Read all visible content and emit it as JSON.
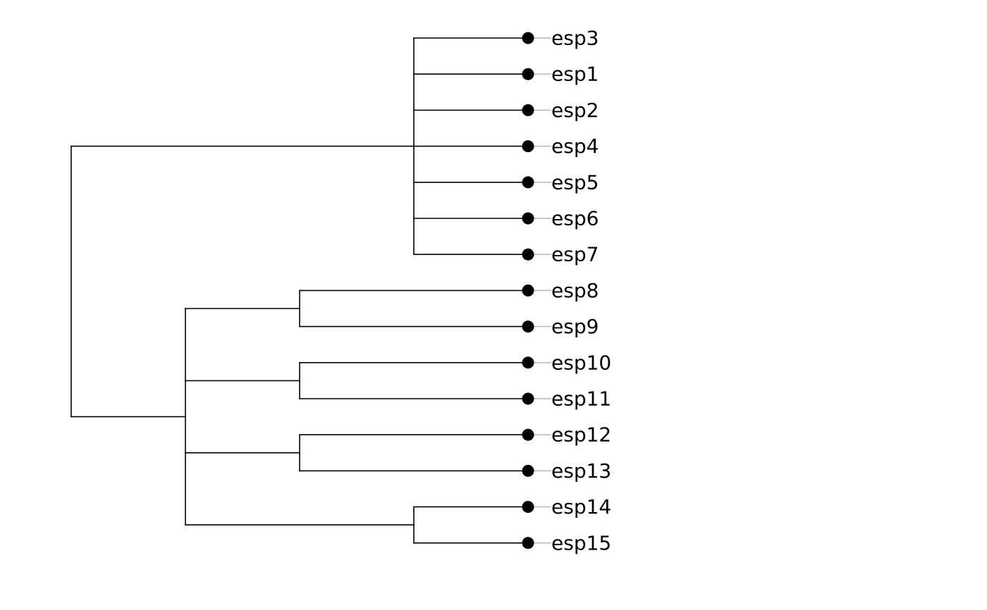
{
  "tree": {
    "id": "root",
    "children": [
      {
        "id": "A",
        "children": [
          {
            "label": "esp3"
          },
          {
            "label": "esp1"
          },
          {
            "label": "esp2"
          },
          {
            "label": "esp4"
          },
          {
            "label": "esp5"
          },
          {
            "label": "esp6"
          },
          {
            "label": "esp7"
          }
        ]
      },
      {
        "id": "B",
        "children": [
          {
            "id": "B1",
            "children": [
              {
                "label": "esp8"
              },
              {
                "label": "esp9"
              }
            ]
          },
          {
            "id": "B2",
            "children": [
              {
                "label": "esp10"
              },
              {
                "label": "esp11"
              }
            ]
          },
          {
            "id": "B3",
            "children": [
              {
                "label": "esp12"
              },
              {
                "label": "esp13"
              }
            ]
          },
          {
            "id": "B4",
            "children": [
              {
                "label": "esp14"
              },
              {
                "label": "esp15"
              }
            ]
          }
        ]
      }
    ]
  },
  "colors": {
    "branch": "#000000",
    "tip_dot": "#000000",
    "leader": "#b3b3b3",
    "label": "#000000"
  }
}
